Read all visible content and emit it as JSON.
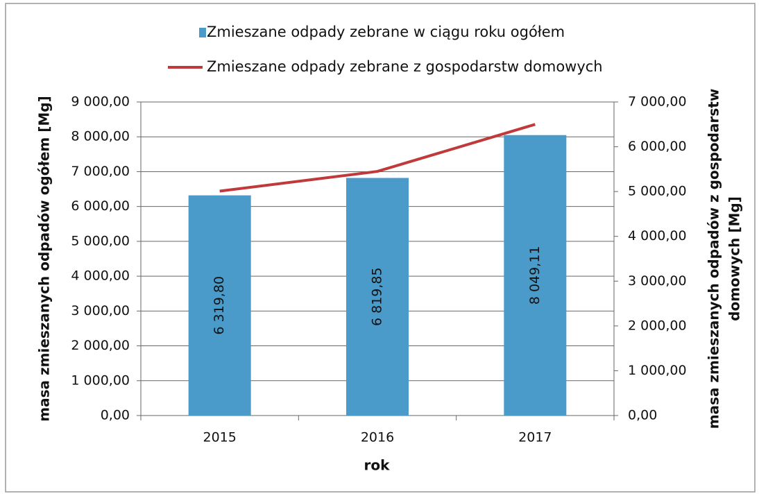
{
  "chart_data": {
    "type": "bar",
    "categories": [
      "2015",
      "2016",
      "2017"
    ],
    "series": [
      {
        "name": "Zmieszane odpady zebrane w ciągu roku ogółem",
        "type": "bar",
        "color": "#4a9bc9",
        "values": [
          6319.8,
          6819.85,
          8049.11
        ],
        "value_labels": [
          "6 319,80",
          "6 819,85",
          "8 049,11"
        ]
      },
      {
        "name": "Zmieszane odpady zebrane z gospodarstw domowych",
        "type": "line",
        "axis": "y2",
        "color": "#c0393b",
        "values": [
          5010,
          5450,
          6500
        ]
      }
    ],
    "xlabel": "rok",
    "ylabel": "masa zmieszanych odpadów ogółem [Mg]",
    "y2label": [
      "masa zmieszanych odpadów z gospodarstw",
      "domowych [Mg]"
    ],
    "ylim": [
      0,
      9000
    ],
    "yticks": [
      {
        "value": 0,
        "label": "0,00"
      },
      {
        "value": 1000,
        "label": "1 000,00"
      },
      {
        "value": 2000,
        "label": "2 000,00"
      },
      {
        "value": 3000,
        "label": "3 000,00"
      },
      {
        "value": 4000,
        "label": "4 000,00"
      },
      {
        "value": 5000,
        "label": "5 000,00"
      },
      {
        "value": 6000,
        "label": "6 000,00"
      },
      {
        "value": 7000,
        "label": "7 000,00"
      },
      {
        "value": 8000,
        "label": "8 000,00"
      },
      {
        "value": 9000,
        "label": "9 000,00"
      }
    ],
    "y2lim": [
      0,
      7000
    ],
    "y2ticks": [
      {
        "value": 0,
        "label": "0,00"
      },
      {
        "value": 1000,
        "label": "1 000,00"
      },
      {
        "value": 2000,
        "label": "2 000,00"
      },
      {
        "value": 3000,
        "label": "3 000,00"
      },
      {
        "value": 4000,
        "label": "4 000,00"
      },
      {
        "value": 5000,
        "label": "5 000,00"
      },
      {
        "value": 6000,
        "label": "6 000,00"
      },
      {
        "value": 7000,
        "label": "7 000,00"
      }
    ],
    "grid": true,
    "legend": "top"
  }
}
